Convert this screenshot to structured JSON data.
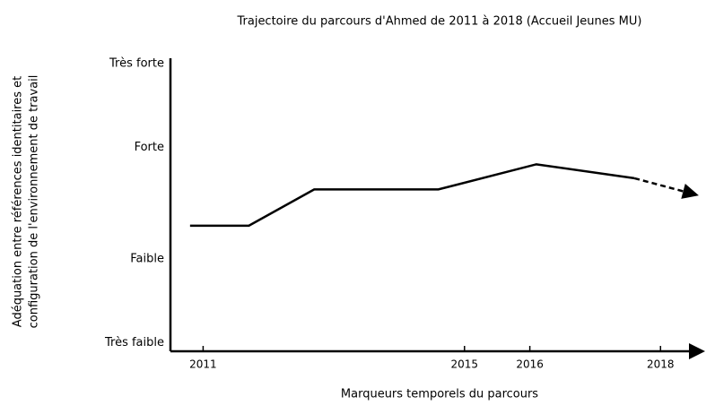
{
  "chart_data": {
    "type": "line",
    "title": "Trajectoire du parcours d'Ahmed de 2011 à 2018 (Accueil Jeunes MU)",
    "x_label": "Marqueurs temporels du parcours",
    "y_label": [
      "Adéquation entre références identitaires et",
      "configuration de l'environnement de travail"
    ],
    "series": [
      {
        "color": "#000000",
        "style": "solid",
        "x": [
          2010.8,
          2011.7,
          2012.7,
          2014.6,
          2016.1,
          2017.6
        ],
        "values": [
          4.2,
          4.2,
          5.5,
          5.5,
          6.4,
          5.9
        ]
      },
      {
        "color": "#000000",
        "style": "dashed",
        "x": [
          2017.6,
          2018.4
        ],
        "values": [
          5.9,
          5.4
        ]
      }
    ],
    "xlim": [
      2010.5,
      2018.6
    ],
    "xticks": [
      2011,
      2015,
      2016,
      2018
    ],
    "ylim": [
      -0.3,
      10.2
    ],
    "yticks": [
      {
        "value": 0,
        "label": "Très faible"
      },
      {
        "value": 3,
        "label": "Faible"
      },
      {
        "value": 7,
        "label": "Forte"
      },
      {
        "value": 10,
        "label": "Très forte"
      }
    ]
  }
}
